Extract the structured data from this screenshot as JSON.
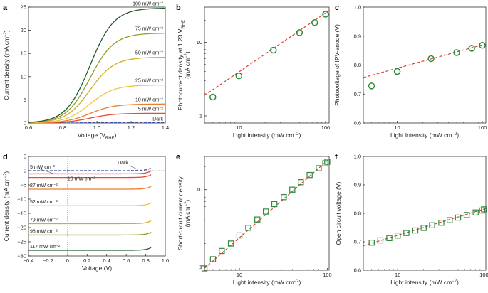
{
  "colors": {
    "dark": "#3b4fa0",
    "c5": "#e64a3b",
    "c10": "#ef7c2d",
    "c25": "#f2c43b",
    "c50": "#c9b031",
    "c75": "#8f9f2e",
    "c100": "#225b2c",
    "green": "#2e8b3a",
    "redfit": "#e03c32"
  },
  "chart_data": [
    {
      "id": "a",
      "panel_label": "a",
      "type": "line",
      "xlabel": "Voltage (V",
      "xlabel_sub": "RHE",
      "xlabel_end": ")",
      "ylabel": "Current density (mA cm",
      "ylabel_sup": "−2",
      "ylabel_end": ")",
      "xlim": [
        0.6,
        1.4
      ],
      "ylim": [
        0,
        25
      ],
      "xticks": [
        "0.6",
        "0.8",
        "1.0",
        "1.2",
        "1.4"
      ],
      "yticks": [
        "0",
        "5",
        "10",
        "15",
        "20",
        "25"
      ],
      "series": [
        {
          "name": "Dark",
          "label": "Dark",
          "plateau": 0.1,
          "color_key": "dark",
          "dashed": true
        },
        {
          "name": "5 mW cm−2",
          "label": "5 mW cm",
          "sup": "−2",
          "plateau": 2.1,
          "color_key": "c5"
        },
        {
          "name": "10 mW cm−2",
          "label": "10 mW cm",
          "sup": "−2",
          "plateau": 4.1,
          "color_key": "c10"
        },
        {
          "name": "25 mW cm−2",
          "label": "25 mW cm",
          "sup": "−2",
          "plateau": 8.2,
          "color_key": "c25"
        },
        {
          "name": "50 mW cm−2",
          "label": "50 mW cm",
          "sup": "−2",
          "plateau": 14.2,
          "color_key": "c50"
        },
        {
          "name": "75 mW cm−2",
          "label": "75 mW cm",
          "sup": "−2",
          "plateau": 19.4,
          "color_key": "c75"
        },
        {
          "name": "100 mW cm−2",
          "label": "100 mW cm",
          "sup": "−2",
          "plateau": 24.8,
          "color_key": "c100"
        }
      ]
    },
    {
      "id": "b",
      "panel_label": "b",
      "type": "scatter",
      "xlabel": "Light intensity (mW cm",
      "xlabel_sup": "−2",
      "xlabel_end": ")",
      "ylabel": "Photocurrent density at 1.23 V",
      "ylabel_sub": "RHE",
      "ylabel_line2": "(mA cm",
      "ylabel_sup": "−2",
      "ylabel_end": ")",
      "x_scale": "log",
      "y_scale": "log",
      "xlim": [
        4,
        110
      ],
      "ylim": [
        0.8,
        30
      ],
      "xticks": [
        "10",
        "100"
      ],
      "yticks": [
        "1",
        "10"
      ],
      "x": [
        5,
        10,
        25,
        50,
        75,
        100
      ],
      "y": [
        1.8,
        3.5,
        7.8,
        13.5,
        18.5,
        24.0
      ],
      "fit": {
        "x": [
          4,
          110
        ],
        "y": [
          1.9,
          27
        ]
      },
      "marker": "circle"
    },
    {
      "id": "c",
      "panel_label": "c",
      "type": "scatter",
      "xlabel": "Light Intensity (mW cm",
      "xlabel_sup": "−2",
      "xlabel_end": ")",
      "ylabel": "Photovoltage of IPV-anode (V)",
      "x_scale": "log",
      "xlim": [
        4,
        110
      ],
      "ylim": [
        0.6,
        1.0
      ],
      "xticks": [
        "10",
        "100"
      ],
      "yticks": [
        "0.6",
        "0.7",
        "0.8",
        "0.9",
        "1.0"
      ],
      "x": [
        5,
        10,
        25,
        50,
        75,
        100
      ],
      "y": [
        0.728,
        0.778,
        0.822,
        0.843,
        0.858,
        0.868
      ],
      "fit": {
        "x": [
          4,
          110
        ],
        "y": [
          0.757,
          0.873
        ]
      },
      "marker": "circle"
    },
    {
      "id": "d",
      "panel_label": "d",
      "type": "line",
      "xlabel": "Voltage (V)",
      "ylabel": "Current density (mA cm",
      "ylabel_sup": "−2",
      "ylabel_end": ")",
      "xlim": [
        -0.4,
        1.0
      ],
      "ylim": [
        -30,
        5
      ],
      "xticks": [
        "−0.4",
        "−0.2",
        "0",
        "0.2",
        "0.4",
        "0.6",
        "0.8",
        "1.0"
      ],
      "yticks": [
        "5",
        "0",
        "−5",
        "−10",
        "−15",
        "−20",
        "−25",
        "−30"
      ],
      "series": [
        {
          "name": "Dark",
          "label": "Dark",
          "jsc": 0,
          "color_key": "dark",
          "dashed": true
        },
        {
          "name": "5 mW cm−2",
          "label": "5 mW cm",
          "sup": "−2",
          "jsc": -1.1,
          "color_key": "c5"
        },
        {
          "name": "10 mW cm−2",
          "label": "10 mW cm",
          "sup": "−2",
          "jsc": -2.4,
          "color_key": "c5"
        },
        {
          "name": "27 mW cm−2",
          "label": "27 mW cm",
          "sup": "−2",
          "jsc": -6.5,
          "color_key": "c10"
        },
        {
          "name": "52 mW cm−2",
          "label": "52 mW cm",
          "sup": "−2",
          "jsc": -12.3,
          "color_key": "c25"
        },
        {
          "name": "79 mW cm−2",
          "label": "79 mW cm",
          "sup": "−2",
          "jsc": -18.6,
          "color_key": "c50"
        },
        {
          "name": "96 mW cm−2",
          "label": "96 mW cm",
          "sup": "−2",
          "jsc": -22.6,
          "color_key": "c75"
        },
        {
          "name": "117 mW cm−2",
          "label": "117 mW cm",
          "sup": "−2",
          "jsc": -28.0,
          "color_key": "c100"
        }
      ]
    },
    {
      "id": "e",
      "panel_label": "e",
      "type": "scatter",
      "xlabel": "Light intensity (mW cm",
      "xlabel_sup": "−2",
      "xlabel_end": ")",
      "ylabel": "Short-circuit current density",
      "ylabel_line2": "(mA cm",
      "ylabel_sup": "−2",
      "ylabel_end": ")",
      "x_scale": "log",
      "y_scale": "log",
      "xlim": [
        4,
        105
      ],
      "ylim": [
        0.9,
        27
      ],
      "xticks": [
        "10",
        "100"
      ],
      "yticks": [
        "1",
        "10"
      ],
      "x": [
        4,
        5,
        6.3,
        8,
        10,
        12.6,
        16,
        20,
        25,
        32,
        40,
        50,
        63,
        80,
        95,
        100
      ],
      "y": [
        0.95,
        1.25,
        1.6,
        2.0,
        2.55,
        3.2,
        4.1,
        5.2,
        6.5,
        8.0,
        10.0,
        12.5,
        15.5,
        19.0,
        22.0,
        23.0
      ],
      "fit": {
        "x": [
          4,
          105
        ],
        "y": [
          0.95,
          25
        ]
      },
      "marker": "square"
    },
    {
      "id": "f",
      "panel_label": "f",
      "type": "scatter",
      "xlabel": "Light intensity (mW cm",
      "xlabel_sup": "−2",
      "xlabel_end": ")",
      "ylabel": "Open circuit voltage (V)",
      "x_scale": "log",
      "xlim": [
        4,
        105
      ],
      "ylim": [
        0.6,
        1.0
      ],
      "xticks": [
        "10",
        "100"
      ],
      "yticks": [
        "0.6",
        "0.7",
        "0.8",
        "0.9",
        "1.0"
      ],
      "x": [
        5,
        6.3,
        8,
        10,
        12.6,
        16,
        20,
        25,
        32,
        40,
        50,
        63,
        80,
        95,
        100
      ],
      "y": [
        0.697,
        0.705,
        0.713,
        0.722,
        0.731,
        0.74,
        0.749,
        0.758,
        0.767,
        0.776,
        0.785,
        0.794,
        0.803,
        0.81,
        0.814
      ],
      "fit": {
        "x": [
          4,
          105
        ],
        "y": [
          0.686,
          0.817
        ]
      },
      "marker": "square"
    }
  ]
}
